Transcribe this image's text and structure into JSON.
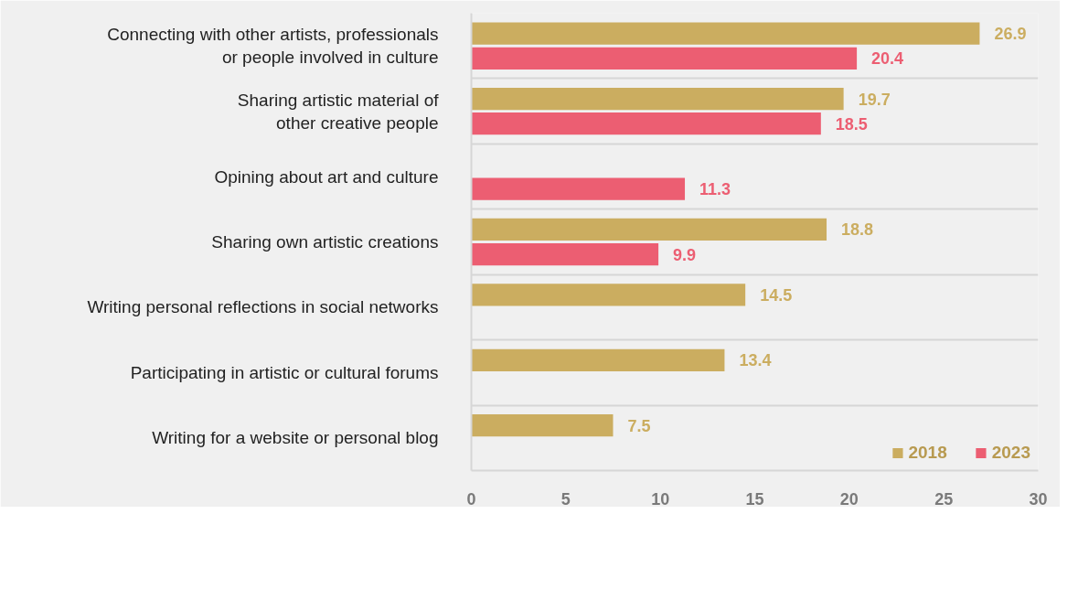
{
  "chart_data": {
    "type": "bar",
    "orientation": "horizontal",
    "categories": [
      "Connecting with other artists, professionals\nor people involved in culture",
      "Sharing artistic material of\nother creative people",
      "Opining about art and culture",
      "Sharing own artistic creations",
      "Writing personal reflections in social networks",
      "Participating in artistic or cultural forums",
      "Writing for a website or personal blog"
    ],
    "series": [
      {
        "name": "2018",
        "color": "#cbad60",
        "values": [
          26.9,
          19.7,
          null,
          18.8,
          14.5,
          13.4,
          7.5
        ]
      },
      {
        "name": "2023",
        "color": "#ec5e72",
        "values": [
          20.4,
          18.5,
          11.3,
          9.9,
          null,
          null,
          null
        ]
      }
    ],
    "xlim": [
      0,
      30
    ],
    "xticks": [
      0,
      5,
      10,
      15,
      20,
      25,
      30
    ],
    "data_labels": true,
    "grid": "y",
    "legend": "bottom right"
  }
}
